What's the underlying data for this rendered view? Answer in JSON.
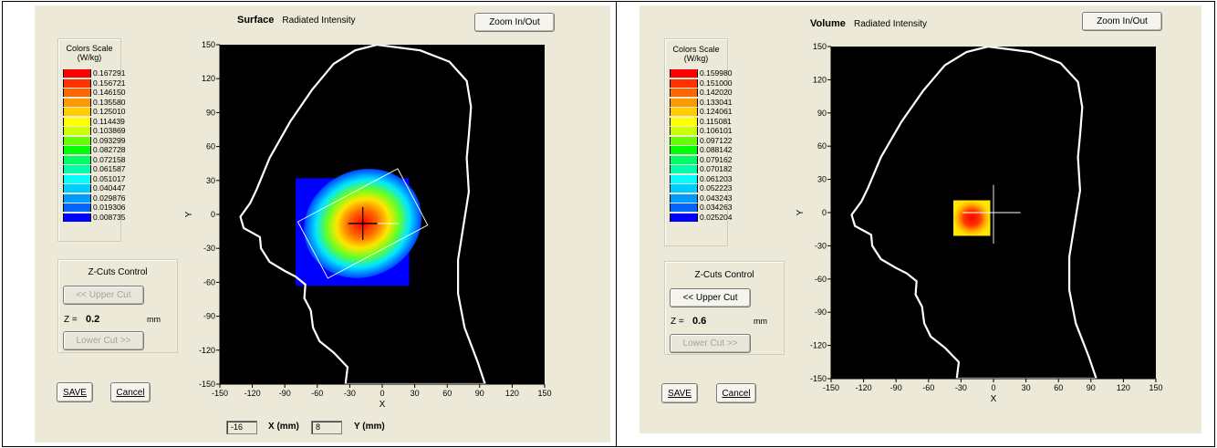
{
  "panels": [
    {
      "mode": "Surface",
      "subtitle": "Radiated Intensity",
      "zoom_label": "Zoom In/Out",
      "color_scale": {
        "title_line1": "Colors Scale",
        "title_line2": "(W/kg)",
        "colors": [
          "#ff0000",
          "#ff3300",
          "#ff6600",
          "#ff9900",
          "#ffcc00",
          "#ffff00",
          "#ccff00",
          "#66ff00",
          "#00ff00",
          "#00ff66",
          "#00ffaa",
          "#00ffff",
          "#00ccff",
          "#0099ff",
          "#0066ff",
          "#0000ff"
        ],
        "values": [
          "0.167291",
          "0.156721",
          "0.146150",
          "0.135580",
          "0.125010",
          "0.114439",
          "0.103869",
          "0.093299",
          "0.082728",
          "0.072158",
          "0.061587",
          "0.051017",
          "0.040447",
          "0.029876",
          "0.019306",
          "0.008735"
        ]
      },
      "zcuts": {
        "title": "Z-Cuts Control",
        "upper_label": "<< Upper Cut",
        "lower_label": "Lower Cut >>",
        "z_prefix": "Z =",
        "z_value": "0.2",
        "z_unit": "mm"
      },
      "save_label": "SAVE",
      "cancel_label": "Cancel",
      "readout": {
        "x_value": "-16",
        "x_label": "X (mm)",
        "y_value": "8",
        "y_label": "Y (mm)"
      },
      "axes": {
        "x_label": "X",
        "y_label": "Y",
        "x_ticks": [
          "-150",
          "-120",
          "-90",
          "-60",
          "-30",
          "0",
          "30",
          "60",
          "90",
          "120",
          "150"
        ],
        "y_ticks": [
          "150",
          "120",
          "90",
          "60",
          "30",
          "0",
          "-30",
          "-60",
          "-90",
          "-120",
          "-150"
        ]
      }
    },
    {
      "mode": "Volume",
      "subtitle": "Radiated Intensity",
      "zoom_label": "Zoom In/Out",
      "color_scale": {
        "title_line1": "Colors Scale",
        "title_line2": "(W/kg)",
        "colors": [
          "#ff0000",
          "#ff3300",
          "#ff6600",
          "#ff9900",
          "#ffcc00",
          "#ffff00",
          "#ccff00",
          "#66ff00",
          "#00ff00",
          "#00ff66",
          "#00ffaa",
          "#00ffff",
          "#00ccff",
          "#0099ff",
          "#0066ff",
          "#0000ff"
        ],
        "values": [
          "0.159980",
          "0.151000",
          "0.142020",
          "0.133041",
          "0.124061",
          "0.115081",
          "0.106101",
          "0.097122",
          "0.088142",
          "0.079162",
          "0.070182",
          "0.061203",
          "0.052223",
          "0.043243",
          "0.034263",
          "0.025204"
        ]
      },
      "zcuts": {
        "title": "Z-Cuts Control",
        "upper_label": "<< Upper Cut",
        "lower_label": "Lower Cut >>",
        "z_prefix": "Z =",
        "z_value": "0.6",
        "z_unit": "mm"
      },
      "save_label": "SAVE",
      "cancel_label": "Cancel",
      "axes": {
        "x_label": "X",
        "y_label": "Y",
        "x_ticks": [
          "-150",
          "-120",
          "-90",
          "-60",
          "-30",
          "0",
          "30",
          "60",
          "90",
          "120",
          "150"
        ],
        "y_ticks": [
          "150",
          "120",
          "90",
          "60",
          "30",
          "0",
          "-30",
          "-60",
          "-90",
          "-120",
          "-150"
        ]
      }
    }
  ]
}
